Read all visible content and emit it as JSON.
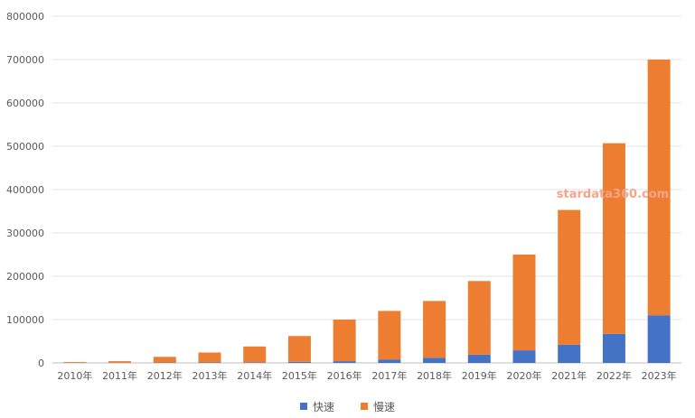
{
  "chart_data": {
    "type": "bar",
    "stacked": true,
    "categories": [
      "2010年",
      "2011年",
      "2012年",
      "2013年",
      "2014年",
      "2015年",
      "2016年",
      "2017年",
      "2018年",
      "2019年",
      "2020年",
      "2021年",
      "2022年",
      "2023年"
    ],
    "series": [
      {
        "name": "快速",
        "color": "#4472c4",
        "values": [
          200,
          400,
          800,
          1200,
          1500,
          2500,
          4000,
          8000,
          12000,
          19000,
          29000,
          42000,
          67000,
          110000
        ]
      },
      {
        "name": "慢速",
        "color": "#ed7d31",
        "values": [
          1800,
          3600,
          13200,
          22800,
          36500,
          59500,
          96000,
          112000,
          131000,
          170000,
          221000,
          311000,
          440000,
          590000
        ]
      }
    ],
    "yticks": [
      "0",
      "100000",
      "200000",
      "300000",
      "400000",
      "500000",
      "600000",
      "700000",
      "800000"
    ],
    "ylim": [
      0,
      800000
    ],
    "grid": true,
    "legend_position": "bottom",
    "watermark": "stardata360.com",
    "watermark_color": "#f4a58a"
  }
}
